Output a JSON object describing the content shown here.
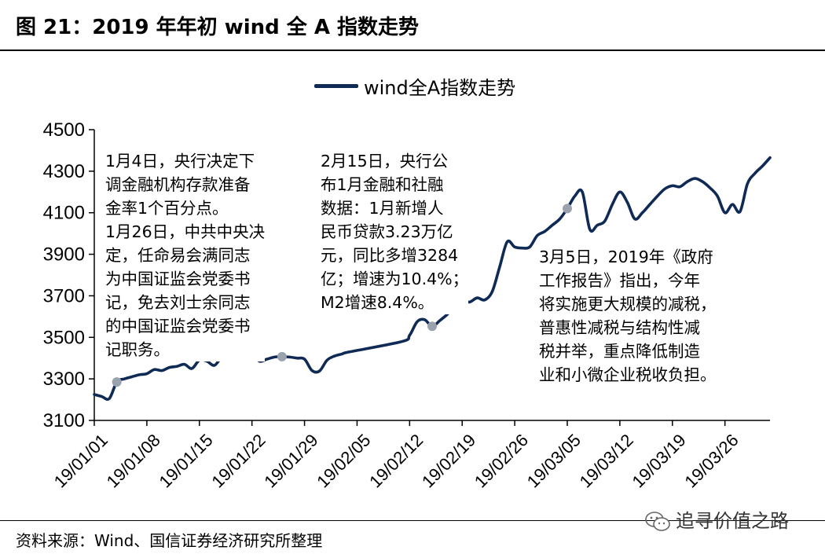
{
  "figure": {
    "title": "图 21：2019 年年初 wind 全 A 指数走势",
    "source": "资料来源：Wind、国信证券经济研究所整理",
    "watermark": "追寻价值之路"
  },
  "colors": {
    "line": "#102a56",
    "marker": "#9aa3ad"
  },
  "chart_data": {
    "type": "line",
    "title": "",
    "legend": "top-center",
    "grid": false,
    "xlabel": "",
    "ylabel": "",
    "ylim": [
      3100,
      4500
    ],
    "yticks": [
      "3100",
      "3300",
      "3500",
      "3700",
      "3900",
      "4100",
      "4300",
      "4500"
    ],
    "xticks": [
      "19/01/01",
      "19/01/08",
      "19/01/15",
      "19/01/22",
      "19/01/29",
      "19/02/05",
      "19/02/12",
      "19/02/19",
      "19/02/26",
      "19/03/05",
      "19/03/12",
      "19/03/19",
      "19/03/26"
    ],
    "series": [
      {
        "name": "wind全A指数走势",
        "points": [
          [
            "2019-01-01",
            3225
          ],
          [
            "2019-01-02",
            3215
          ],
          [
            "2019-01-03",
            3205
          ],
          [
            "2019-01-04",
            3285
          ],
          [
            "2019-01-05",
            3300
          ],
          [
            "2019-01-06",
            3310
          ],
          [
            "2019-01-07",
            3320
          ],
          [
            "2019-01-08",
            3325
          ],
          [
            "2019-01-09",
            3345
          ],
          [
            "2019-01-10",
            3340
          ],
          [
            "2019-01-11",
            3355
          ],
          [
            "2019-01-12",
            3360
          ],
          [
            "2019-01-13",
            3370
          ],
          [
            "2019-01-14",
            3350
          ],
          [
            "2019-01-15",
            3390
          ],
          [
            "2019-01-16",
            3385
          ],
          [
            "2019-01-17",
            3365
          ],
          [
            "2019-01-18",
            3405
          ],
          [
            "2019-01-19",
            3410
          ],
          [
            "2019-01-20",
            3420
          ],
          [
            "2019-01-21",
            3425
          ],
          [
            "2019-01-22",
            3420
          ],
          [
            "2019-01-23",
            3385
          ],
          [
            "2019-01-24",
            3395
          ],
          [
            "2019-01-25",
            3405
          ],
          [
            "2019-01-26",
            3407
          ],
          [
            "2019-01-27",
            3405
          ],
          [
            "2019-01-28",
            3400
          ],
          [
            "2019-01-29",
            3395
          ],
          [
            "2019-01-30",
            3340
          ],
          [
            "2019-01-31",
            3338
          ],
          [
            "2019-02-01",
            3390
          ],
          [
            "2019-02-02",
            3410
          ],
          [
            "2019-02-03",
            3420
          ],
          [
            "2019-02-04",
            3430
          ],
          [
            "2019-02-11",
            3480
          ],
          [
            "2019-02-12",
            3510
          ],
          [
            "2019-02-13",
            3575
          ],
          [
            "2019-02-14",
            3585
          ],
          [
            "2019-02-15",
            3553
          ],
          [
            "2019-02-16",
            3580
          ],
          [
            "2019-02-17",
            3610
          ],
          [
            "2019-02-18",
            3650
          ],
          [
            "2019-02-19",
            3675
          ],
          [
            "2019-02-20",
            3670
          ],
          [
            "2019-02-21",
            3690
          ],
          [
            "2019-02-22",
            3680
          ],
          [
            "2019-02-23",
            3720
          ],
          [
            "2019-02-24",
            3840
          ],
          [
            "2019-02-25",
            3960
          ],
          [
            "2019-02-26",
            3935
          ],
          [
            "2019-02-27",
            3930
          ],
          [
            "2019-02-28",
            3935
          ],
          [
            "2019-03-01",
            3990
          ],
          [
            "2019-03-02",
            4010
          ],
          [
            "2019-03-03",
            4040
          ],
          [
            "2019-03-04",
            4070
          ],
          [
            "2019-03-05",
            4120
          ],
          [
            "2019-03-06",
            4180
          ],
          [
            "2019-03-07",
            4200
          ],
          [
            "2019-03-08",
            4020
          ],
          [
            "2019-03-09",
            4040
          ],
          [
            "2019-03-10",
            4060
          ],
          [
            "2019-03-11",
            4140
          ],
          [
            "2019-03-12",
            4200
          ],
          [
            "2019-03-13",
            4150
          ],
          [
            "2019-03-14",
            4070
          ],
          [
            "2019-03-15",
            4100
          ],
          [
            "2019-03-16",
            4140
          ],
          [
            "2019-03-17",
            4180
          ],
          [
            "2019-03-18",
            4215
          ],
          [
            "2019-03-19",
            4230
          ],
          [
            "2019-03-20",
            4225
          ],
          [
            "2019-03-21",
            4250
          ],
          [
            "2019-03-22",
            4265
          ],
          [
            "2019-03-23",
            4250
          ],
          [
            "2019-03-24",
            4220
          ],
          [
            "2019-03-25",
            4180
          ],
          [
            "2019-03-26",
            4100
          ],
          [
            "2019-03-27",
            4140
          ],
          [
            "2019-03-28",
            4105
          ],
          [
            "2019-03-29",
            4240
          ],
          [
            "2019-03-30",
            4290
          ],
          [
            "2019-03-31",
            4325
          ],
          [
            "2019-04-01",
            4365
          ]
        ]
      }
    ],
    "markers": [
      {
        "date": "2019-01-04",
        "value": 3285
      },
      {
        "date": "2019-01-26",
        "value": 3407
      },
      {
        "date": "2019-02-15",
        "value": 3553
      },
      {
        "date": "2019-03-05",
        "value": 4120
      }
    ],
    "annotations": [
      "1月4日，央行决定下\n调金融机构存款准备\n金率1个百分点。\n1月26日，中共中央决\n定，任命易会满同志\n为中国证监会党委书\n记，免去刘士余同志\n的中国证监会党委书\n记职务。",
      "2月15日，央行公\n布1月金融和社融\n数据：1月新增人\n民币贷款3.23万亿\n元，同比多增3284\n亿；增速为10.4%；\nM2增速8.4%。",
      "3月5日，2019年《政府\n工作报告》指出，今年\n将实施更大规模的减税，\n普惠性减税与结构性减\n税并举，重点降低制造\n业和小微企业税收负担。"
    ]
  }
}
